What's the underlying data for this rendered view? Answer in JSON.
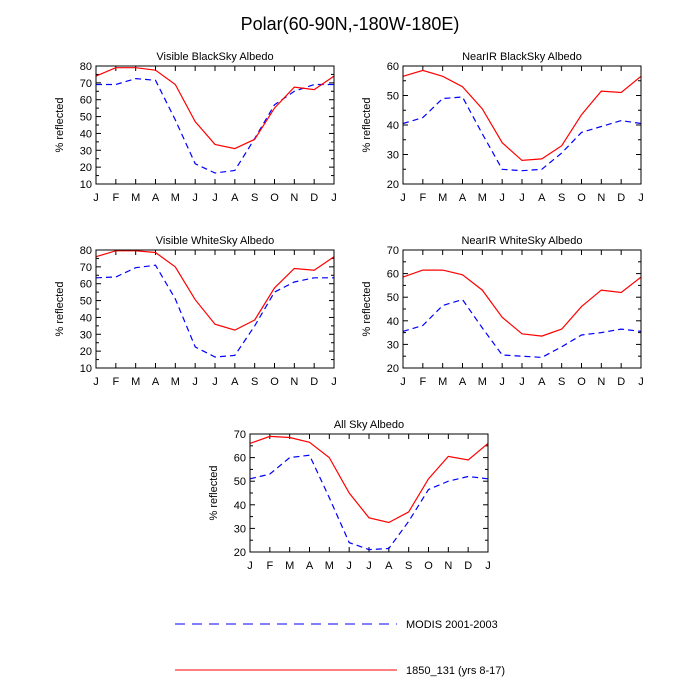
{
  "title": "Polar(60-90N,-180W-180E)",
  "legend": {
    "items": [
      {
        "label": "MODIS 2001-2003",
        "color": "#0000ff",
        "dash": "dashed"
      },
      {
        "label": "1850_131 (yrs 8-17)",
        "color": "#ff0000",
        "dash": "solid"
      }
    ]
  },
  "chart_data": [
    {
      "type": "line",
      "title": "Visible BlackSky Albedo",
      "ylabel": "% reflected",
      "categories": [
        "J",
        "F",
        "M",
        "A",
        "M",
        "J",
        "J",
        "A",
        "S",
        "O",
        "N",
        "D",
        "J"
      ],
      "ylim": [
        10,
        80
      ],
      "yticks": [
        10,
        20,
        30,
        40,
        50,
        60,
        70,
        80
      ],
      "series": [
        {
          "name": "MODIS 2001-2003",
          "values": [
            69,
            69,
            72.5,
            71.5,
            48,
            22,
            16.5,
            18,
            37,
            57,
            65,
            69,
            69
          ]
        },
        {
          "name": "1850_131 (yrs 8-17)",
          "values": [
            74,
            79,
            79,
            77.5,
            69,
            47,
            33.5,
            31,
            36.5,
            55,
            67.5,
            66,
            74
          ]
        }
      ]
    },
    {
      "type": "line",
      "title": "NearIR BlackSky Albedo",
      "ylabel": "% reflected",
      "categories": [
        "J",
        "F",
        "M",
        "A",
        "M",
        "J",
        "J",
        "A",
        "S",
        "O",
        "N",
        "D",
        "J"
      ],
      "ylim": [
        20,
        60
      ],
      "yticks": [
        20,
        30,
        40,
        50,
        60
      ],
      "series": [
        {
          "name": "MODIS 2001-2003",
          "values": [
            40.5,
            42.5,
            49,
            49.5,
            37,
            25,
            24.5,
            25,
            30.5,
            37.5,
            39.5,
            41.5,
            40.5
          ]
        },
        {
          "name": "1850_131 (yrs 8-17)",
          "values": [
            56.5,
            58.5,
            56.5,
            53,
            45.5,
            34,
            28,
            28.5,
            33,
            43.5,
            51.5,
            51,
            56.5
          ]
        }
      ]
    },
    {
      "type": "line",
      "title": "Visible WhiteSky Albedo",
      "ylabel": "% reflected",
      "categories": [
        "J",
        "F",
        "M",
        "A",
        "M",
        "J",
        "J",
        "A",
        "S",
        "O",
        "N",
        "D",
        "J"
      ],
      "ylim": [
        10,
        80
      ],
      "yticks": [
        10,
        20,
        30,
        40,
        50,
        60,
        70,
        80
      ],
      "series": [
        {
          "name": "MODIS 2001-2003",
          "values": [
            63.5,
            64,
            69.5,
            71,
            51,
            22.5,
            16.5,
            17.5,
            35,
            55,
            61,
            63.5,
            63.5
          ]
        },
        {
          "name": "1850_131 (yrs 8-17)",
          "values": [
            76,
            79.5,
            79.5,
            78.5,
            70,
            50.5,
            36,
            32.5,
            38.5,
            57.5,
            69,
            68,
            76
          ]
        }
      ]
    },
    {
      "type": "line",
      "title": "NearIR WhiteSky Albedo",
      "ylabel": "% reflected",
      "categories": [
        "J",
        "F",
        "M",
        "A",
        "M",
        "J",
        "J",
        "A",
        "S",
        "O",
        "N",
        "D",
        "J"
      ],
      "ylim": [
        20,
        70
      ],
      "yticks": [
        20,
        30,
        40,
        50,
        60,
        70
      ],
      "series": [
        {
          "name": "MODIS 2001-2003",
          "values": [
            35.5,
            38,
            46.5,
            49,
            37,
            25.5,
            25,
            24.5,
            29,
            34,
            35,
            36.5,
            35.5
          ]
        },
        {
          "name": "1850_131 (yrs 8-17)",
          "values": [
            58.5,
            61.5,
            61.5,
            59.5,
            53,
            41.5,
            34.5,
            33.5,
            36.5,
            46,
            53,
            52,
            58.5
          ]
        }
      ]
    },
    {
      "type": "line",
      "title": "All Sky Albedo",
      "ylabel": "% reflected",
      "categories": [
        "J",
        "F",
        "M",
        "A",
        "M",
        "J",
        "J",
        "A",
        "S",
        "O",
        "N",
        "D",
        "J"
      ],
      "ylim": [
        20,
        70
      ],
      "yticks": [
        20,
        30,
        40,
        50,
        60,
        70
      ],
      "series": [
        {
          "name": "MODIS 2001-2003",
          "values": [
            51,
            53,
            60,
            61,
            43,
            24,
            21,
            21.5,
            33,
            46.5,
            50,
            52,
            51
          ]
        },
        {
          "name": "1850_131 (yrs 8-17)",
          "values": [
            66,
            69,
            68.5,
            66.5,
            60,
            45,
            34.5,
            32.5,
            37,
            51,
            60.5,
            59,
            66
          ]
        }
      ]
    }
  ]
}
